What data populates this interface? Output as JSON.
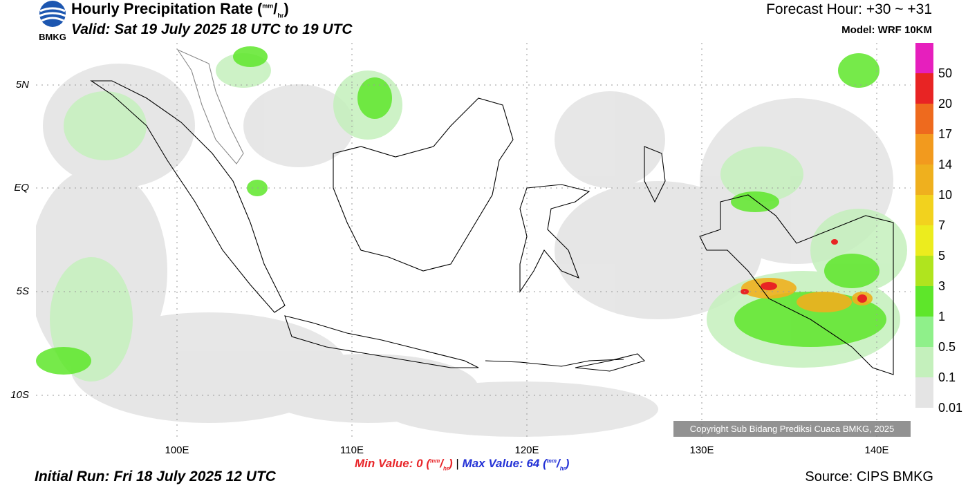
{
  "header": {
    "title": "Hourly Precipitation Rate (",
    "title_unit_num": "mm",
    "title_unit_den": "hr",
    "title_close": ")",
    "valid": "Valid: Sat 19 July 2025 18 UTC to 19 UTC",
    "forecast_hour": "Forecast Hour: +30 ~ +31",
    "model": "Model: WRF 10KM",
    "logo_text": "BMKG"
  },
  "axes": {
    "lat_labels": [
      "5N",
      "EQ",
      "5S",
      "10S"
    ],
    "lon_labels": [
      "100E",
      "110E",
      "120E",
      "130E",
      "140E"
    ]
  },
  "legend": {
    "labels": [
      "50",
      "20",
      "17",
      "14",
      "10",
      "7",
      "5",
      "3",
      "1",
      "0.5",
      "0.1",
      "0.01"
    ],
    "colors": [
      "#e61fbd",
      "#e82424",
      "#ee6a1e",
      "#f29a1e",
      "#efb01e",
      "#f2d21e",
      "#ecec1e",
      "#b0e41e",
      "#5ee62a",
      "#8ff08a",
      "#c4f0bc",
      "#e4e4e4"
    ]
  },
  "footer": {
    "min_label": "Min Value:",
    "min_value": "0",
    "max_label": "Max Value:",
    "max_value": "64",
    "unit_num": "mm",
    "unit_den": "hr",
    "separator": "|",
    "initial_run": "Initial Run: Fri 18 July 2025 12 UTC",
    "source": "Source: CIPS BMKG",
    "copyright": "Copyright Sub Bidang Prediksi Cuaca BMKG, 2025"
  }
}
